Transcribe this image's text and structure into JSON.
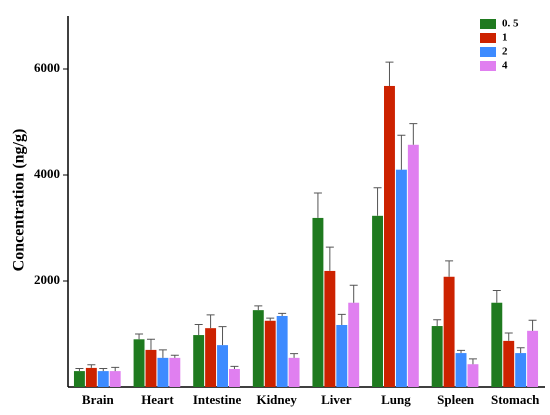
{
  "chart_data": {
    "type": "bar",
    "y_label": "Concentration (ng/g)",
    "categories": [
      "Brain",
      "Heart",
      "Intestine",
      "Kidney",
      "Liver",
      "Lung",
      "Spleen",
      "Stomach"
    ],
    "series": [
      {
        "name": "0. 5",
        "color": "#1f7a1f",
        "values": [
          300,
          900,
          980,
          1450,
          3190,
          3230,
          1150,
          1590
        ],
        "errors": [
          50,
          100,
          200,
          80,
          470,
          530,
          120,
          230
        ]
      },
      {
        "name": "1",
        "color": "#cc2200",
        "values": [
          360,
          700,
          1110,
          1250,
          2190,
          5680,
          2080,
          870
        ],
        "errors": [
          60,
          200,
          250,
          50,
          450,
          450,
          300,
          150
        ]
      },
      {
        "name": "2",
        "color": "#3d8bff",
        "values": [
          300,
          550,
          790,
          1340,
          1170,
          4100,
          640,
          640
        ],
        "errors": [
          50,
          150,
          350,
          50,
          200,
          650,
          50,
          100
        ]
      },
      {
        "name": "4",
        "color": "#e07ff0",
        "values": [
          300,
          550,
          340,
          550,
          1590,
          4570,
          430,
          1060
        ],
        "errors": [
          70,
          50,
          50,
          80,
          330,
          400,
          100,
          200
        ]
      }
    ],
    "ylim": [
      0,
      7000
    ],
    "yticks": [
      2000,
      4000,
      6000
    ],
    "legend": "top-right"
  }
}
